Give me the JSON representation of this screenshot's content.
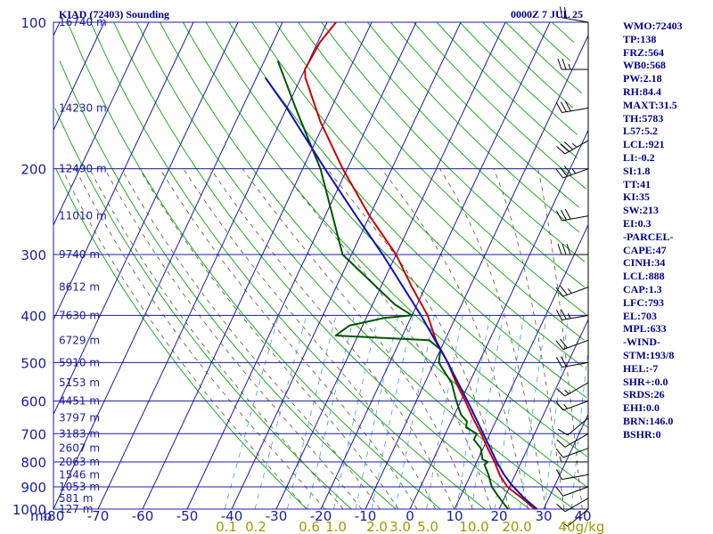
{
  "header": {
    "station": "KIAD (72403) Sounding",
    "time": "0000Z  7 JUL 25"
  },
  "indices": [
    "WMO:72403",
    "TP:138",
    "FRZ:564",
    "WB0:568",
    "PW:2.18",
    "RH:84.4",
    "MAXT:31.5",
    "TH:5783",
    "L57:5.2",
    "LCL:921",
    "LI:-0.2",
    "SI:1.8",
    "TT:41",
    "KI:35",
    "SW:213",
    "EI:0.3",
    "-PARCEL-",
    "CAPE:47",
    "CINH:34",
    "LCL:888",
    "CAP:1.3",
    "LFC:793",
    "EL:703",
    "MPL:633",
    "-WIND-",
    "STM:193/8",
    "HEL:-7",
    "SHR+:0.0",
    "SRDS:26",
    "EHI:0.0",
    "BRN:146.0",
    "BSHR:0"
  ],
  "colors": {
    "grid": "#1c1c9c",
    "dry_adiabat": "#22aa22",
    "moist_adiabat": "#555533",
    "mixing_ratio": "#4a9ae0",
    "temperature": "#cc0000",
    "dewpoint": "#005500",
    "parcel": "#1010c0",
    "wind": "#000000"
  },
  "chart_data": {
    "type": "skew-t",
    "xlabel": "mb",
    "pressure_levels": [
      100,
      200,
      300,
      400,
      500,
      600,
      700,
      800,
      900,
      1000
    ],
    "temperature_ticks": [
      -80,
      -70,
      -60,
      -50,
      -40,
      -30,
      -20,
      -10,
      0,
      10,
      20,
      30,
      40
    ],
    "mixing_ratio_labels": [
      "0.1",
      "0.2",
      "0.6",
      "1.0",
      "2.0",
      "3.0",
      "5.0",
      "10.0",
      "20.0",
      "40",
      "g/kg"
    ],
    "height_labels": [
      {
        "p": 100,
        "label": "16740 m"
      },
      {
        "p": 150,
        "label": "14230 m"
      },
      {
        "p": 200,
        "label": "12490 m"
      },
      {
        "p": 250,
        "label": "11010 m"
      },
      {
        "p": 300,
        "label": "9740 m"
      },
      {
        "p": 350,
        "label": "8612 m"
      },
      {
        "p": 400,
        "label": "7630 m"
      },
      {
        "p": 450,
        "label": "6729 m"
      },
      {
        "p": 500,
        "label": "5910 m"
      },
      {
        "p": 550,
        "label": "5153 m"
      },
      {
        "p": 600,
        "label": "4451 m"
      },
      {
        "p": 650,
        "label": "3797 m"
      },
      {
        "p": 700,
        "label": "3183 m"
      },
      {
        "p": 750,
        "label": "2607 m"
      },
      {
        "p": 800,
        "label": "2063 m"
      },
      {
        "p": 850,
        "label": "1546 m"
      },
      {
        "p": 900,
        "label": "1053 m"
      },
      {
        "p": 950,
        "label": "581 m"
      },
      {
        "p": 1000,
        "label": "127 m"
      }
    ],
    "temperature_profile": [
      {
        "p": 1000,
        "t": 28
      },
      {
        "p": 950,
        "t": 24
      },
      {
        "p": 900,
        "t": 19.5
      },
      {
        "p": 850,
        "t": 16.5
      },
      {
        "p": 800,
        "t": 14
      },
      {
        "p": 750,
        "t": 11
      },
      {
        "p": 700,
        "t": 8
      },
      {
        "p": 650,
        "t": 4.5
      },
      {
        "p": 600,
        "t": 1
      },
      {
        "p": 550,
        "t": -3
      },
      {
        "p": 500,
        "t": -7
      },
      {
        "p": 450,
        "t": -12
      },
      {
        "p": 400,
        "t": -16.5
      },
      {
        "p": 350,
        "t": -23
      },
      {
        "p": 300,
        "t": -30
      },
      {
        "p": 250,
        "t": -40
      },
      {
        "p": 200,
        "t": -51
      },
      {
        "p": 160,
        "t": -61
      },
      {
        "p": 130,
        "t": -69
      },
      {
        "p": 125,
        "t": -70
      },
      {
        "p": 110,
        "t": -69.5
      },
      {
        "p": 100,
        "t": -68
      }
    ],
    "dewpoint_profile": [
      {
        "p": 1000,
        "t": 22
      },
      {
        "p": 950,
        "t": 19
      },
      {
        "p": 900,
        "t": 16
      },
      {
        "p": 850,
        "t": 14
      },
      {
        "p": 810,
        "t": 12
      },
      {
        "p": 800,
        "t": 12.5
      },
      {
        "p": 790,
        "t": 11
      },
      {
        "p": 750,
        "t": 9.5
      },
      {
        "p": 720,
        "t": 7
      },
      {
        "p": 700,
        "t": 7
      },
      {
        "p": 680,
        "t": 4
      },
      {
        "p": 660,
        "t": 3.5
      },
      {
        "p": 640,
        "t": 1.5
      },
      {
        "p": 600,
        "t": -1
      },
      {
        "p": 550,
        "t": -4
      },
      {
        "p": 520,
        "t": -7
      },
      {
        "p": 500,
        "t": -9
      },
      {
        "p": 470,
        "t": -10
      },
      {
        "p": 450,
        "t": -13.5
      },
      {
        "p": 440,
        "t": -35
      },
      {
        "p": 420,
        "t": -33
      },
      {
        "p": 405,
        "t": -26
      },
      {
        "p": 400,
        "t": -20
      },
      {
        "p": 380,
        "t": -25
      },
      {
        "p": 300,
        "t": -42
      },
      {
        "p": 200,
        "t": -56
      },
      {
        "p": 150,
        "t": -68
      },
      {
        "p": 120,
        "t": -77
      }
    ],
    "parcel_profile": [
      {
        "p": 1000,
        "t": 28.5
      },
      {
        "p": 950,
        "t": 24.5
      },
      {
        "p": 888,
        "t": 20
      },
      {
        "p": 850,
        "t": 17.5
      },
      {
        "p": 800,
        "t": 14.5
      },
      {
        "p": 700,
        "t": 8.5
      },
      {
        "p": 600,
        "t": 1.5
      },
      {
        "p": 500,
        "t": -7
      },
      {
        "p": 400,
        "t": -18
      },
      {
        "p": 300,
        "t": -33
      },
      {
        "p": 250,
        "t": -43
      },
      {
        "p": 200,
        "t": -55
      },
      {
        "p": 150,
        "t": -70
      },
      {
        "p": 130,
        "t": -78
      }
    ],
    "wind_barbs": [
      {
        "p": 1000,
        "dir": 230,
        "spd": 5
      },
      {
        "p": 950,
        "dir": 240,
        "spd": 10
      },
      {
        "p": 900,
        "dir": 250,
        "spd": 10
      },
      {
        "p": 850,
        "dir": 260,
        "spd": 10
      },
      {
        "p": 800,
        "dir": 270,
        "spd": 5
      },
      {
        "p": 750,
        "dir": 250,
        "spd": 10
      },
      {
        "p": 700,
        "dir": 240,
        "spd": 10
      },
      {
        "p": 650,
        "dir": 230,
        "spd": 10
      },
      {
        "p": 600,
        "dir": 250,
        "spd": 15
      },
      {
        "p": 550,
        "dir": 240,
        "spd": 15
      },
      {
        "p": 500,
        "dir": 260,
        "spd": 20
      },
      {
        "p": 450,
        "dir": 250,
        "spd": 20
      },
      {
        "p": 400,
        "dir": 260,
        "spd": 25
      },
      {
        "p": 350,
        "dir": 250,
        "spd": 25
      },
      {
        "p": 300,
        "dir": 270,
        "spd": 30
      },
      {
        "p": 250,
        "dir": 260,
        "spd": 30
      },
      {
        "p": 200,
        "dir": 250,
        "spd": 35
      },
      {
        "p": 175,
        "dir": 240,
        "spd": 35
      },
      {
        "p": 150,
        "dir": 260,
        "spd": 30
      },
      {
        "p": 125,
        "dir": 270,
        "spd": 25
      },
      {
        "p": 100,
        "dir": 280,
        "spd": 20
      }
    ]
  }
}
